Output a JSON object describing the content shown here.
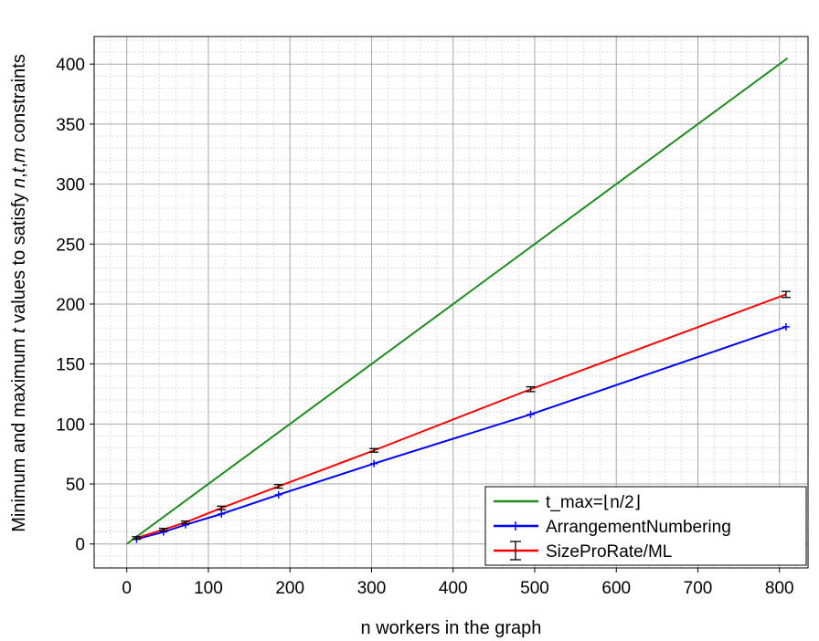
{
  "chart_data": {
    "type": "line",
    "title": "",
    "xlabel": "n workers in the graph",
    "ylabel": "Minimum and maximum t values to satisfy n,t,m constraints",
    "xlim": [
      -40,
      835
    ],
    "ylim": [
      -20,
      423
    ],
    "xticks": [
      0,
      100,
      200,
      300,
      400,
      500,
      600,
      700,
      800
    ],
    "yticks": [
      0,
      50,
      100,
      150,
      200,
      250,
      300,
      350,
      400
    ],
    "grid": true,
    "minor_grid": true,
    "legend_position": "bottom-right",
    "series": [
      {
        "name": "t_max=⌊n/2⌋",
        "color": "#1f8b1f",
        "marker": "none",
        "x": [
          0,
          810
        ],
        "y": [
          0,
          405
        ]
      },
      {
        "name": "ArrangementNumbering",
        "color": "#0000ff",
        "marker": "plus",
        "x": [
          12,
          45,
          72,
          116,
          186,
          303,
          495,
          808
        ],
        "y": [
          4,
          10,
          16,
          25,
          41,
          67,
          108,
          181
        ]
      },
      {
        "name": "SizeProRate/ML",
        "color": "#ff0000",
        "marker": "errorbar",
        "x": [
          12,
          45,
          72,
          116,
          186,
          303,
          495,
          808
        ],
        "y": [
          5,
          12,
          18,
          30,
          48,
          78,
          129,
          208
        ],
        "error": [
          1,
          1,
          1,
          1.5,
          1.5,
          1.5,
          2,
          2.5
        ]
      }
    ]
  }
}
